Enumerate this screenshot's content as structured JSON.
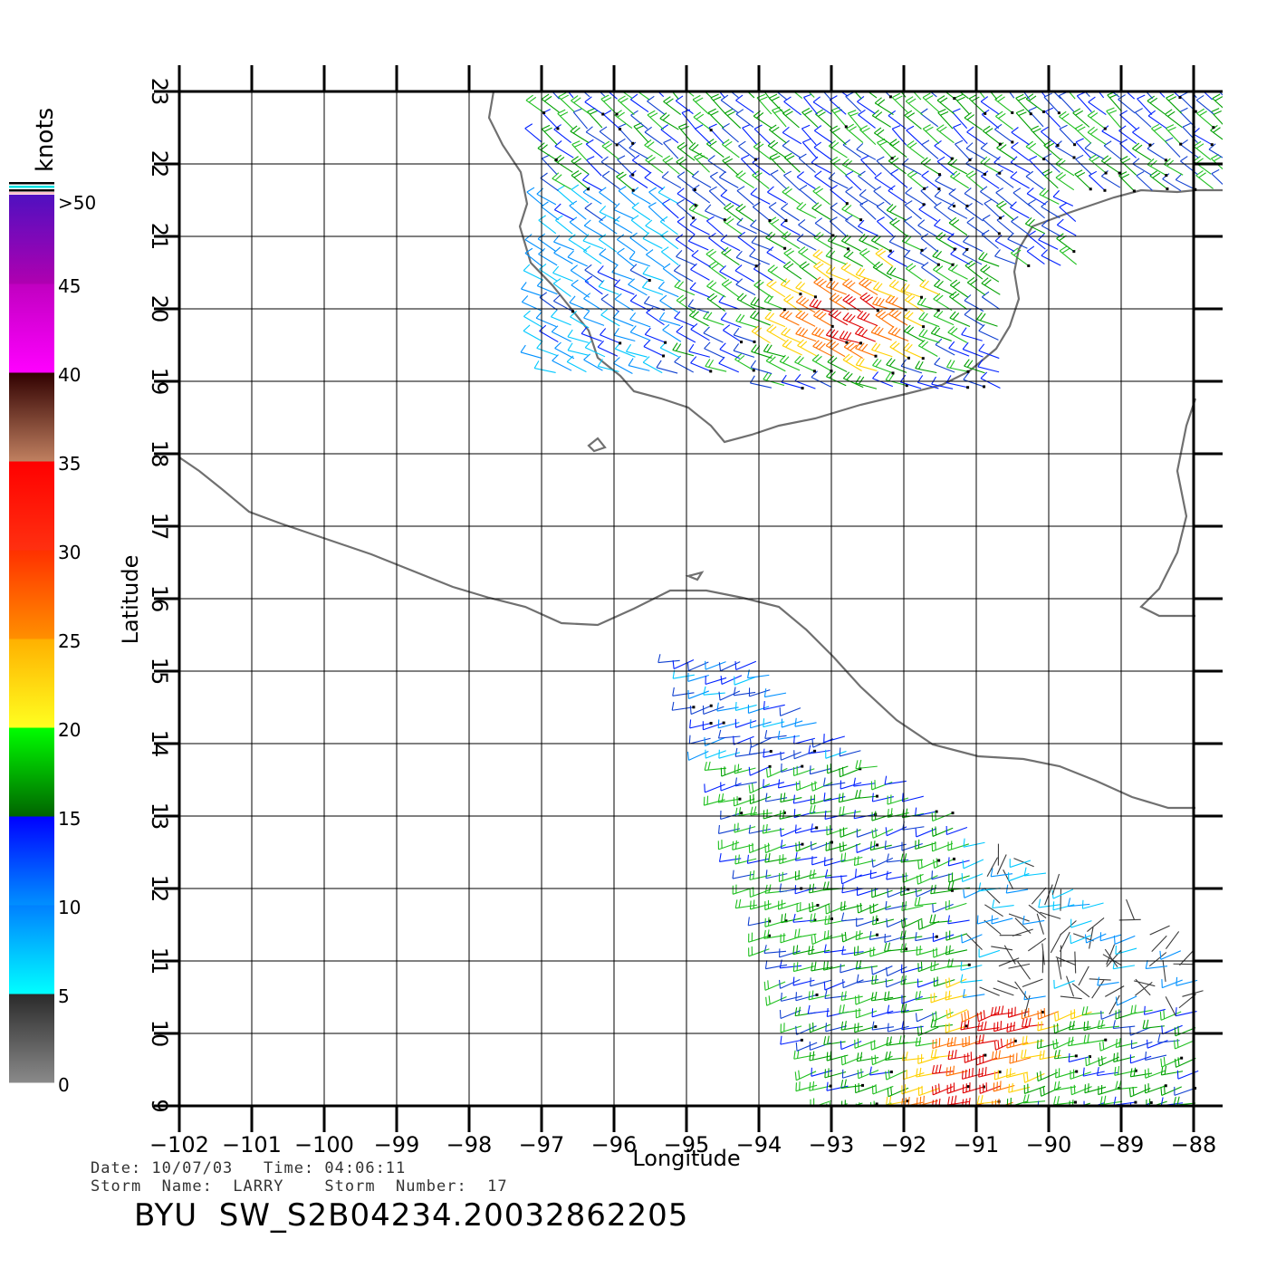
{
  "map": {
    "region": "Gulf of Mexico / Bay of Campeche and Gulf of Tehuantepec",
    "lon_range": [
      -102,
      -88
    ],
    "lat_range": [
      9,
      23
    ],
    "lon_ticks": [
      "−102",
      "−101",
      "−100",
      "−99",
      "−98",
      "−97",
      "−96",
      "−95",
      "−94",
      "−93",
      "−92",
      "−91",
      "−90",
      "−89",
      "−88"
    ],
    "lat_ticks": [
      "9",
      "10",
      "11",
      "12",
      "13",
      "14",
      "15",
      "16",
      "17",
      "18",
      "19",
      "20",
      "21",
      "22",
      "23"
    ],
    "xlabel": "Longitude",
    "ylabel": "Latitude",
    "grid": true,
    "coastline_color": "#707070",
    "gridline_color": "#000000"
  },
  "colorbar": {
    "unit_label": "knots",
    "stops": [
      {
        "label": "0",
        "from": 0,
        "to": 5,
        "colors": [
          "#8a8a8a",
          "#2a2a2a"
        ]
      },
      {
        "label": "5",
        "from": 5,
        "to": 10,
        "colors": [
          "#00ffff",
          "#0080ff"
        ]
      },
      {
        "label": "10",
        "from": 10,
        "to": 15,
        "colors": [
          "#0090ff",
          "#0000ff"
        ]
      },
      {
        "label": "15",
        "from": 15,
        "to": 20,
        "colors": [
          "#006400",
          "#00ff00"
        ]
      },
      {
        "label": "20",
        "from": 20,
        "to": 25,
        "colors": [
          "#ffff20",
          "#ffb000"
        ]
      },
      {
        "label": "25",
        "from": 25,
        "to": 30,
        "colors": [
          "#ff9000",
          "#ff3000"
        ]
      },
      {
        "label": "30",
        "from": 30,
        "to": 35,
        "colors": [
          "#ff3010",
          "#ff0000"
        ]
      },
      {
        "label": "35",
        "from": 35,
        "to": 40,
        "colors": [
          "#c08060",
          "#300000"
        ]
      },
      {
        "label": "40",
        "from": 40,
        "to": 45,
        "colors": [
          "#ff00ff",
          "#c000c0"
        ]
      },
      {
        "label": "45",
        "from": 45,
        "to": 50,
        "colors": [
          "#b000b0",
          "#5010c0"
        ]
      }
    ],
    "top_label": ">50"
  },
  "info": {
    "date_line": "Date: 10/07/03   Time: 04:06:11",
    "storm_line": "Storm  Name:  LARRY    Storm  Number:  17",
    "title": "BYU  SW_S2B04234.20032862205"
  }
}
